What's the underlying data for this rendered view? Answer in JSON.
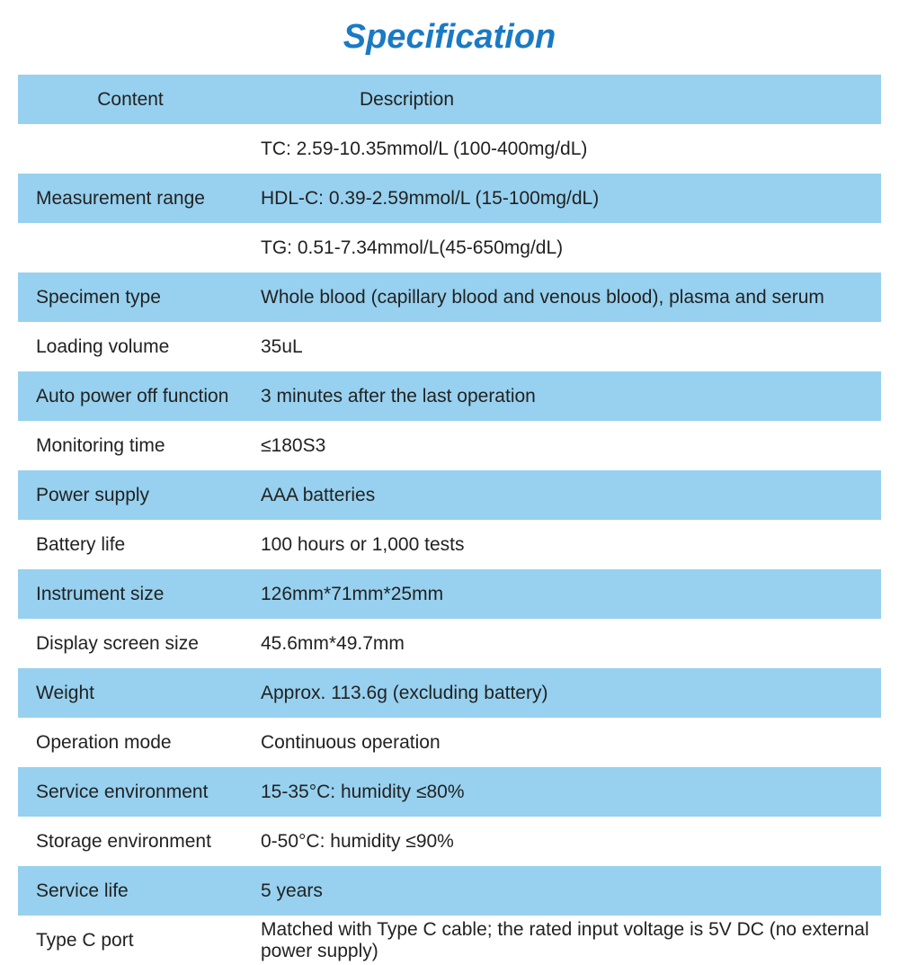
{
  "title": {
    "text": "Specification",
    "color": "#1a7ac4"
  },
  "table": {
    "header_bg": "#97d1ef",
    "row_bg_blue": "#97d1ef",
    "row_bg_white": "#ffffff",
    "text_color": "#222222"
  },
  "columns": [
    "Content",
    "Description"
  ],
  "rows": [
    {
      "content": "",
      "description": "TC: 2.59-10.35mmol/L (100-400mg/dL)",
      "bg": "white"
    },
    {
      "content": "Measurement range",
      "description": "HDL-C: 0.39-2.59mmol/L (15-100mg/dL)",
      "bg": "blue"
    },
    {
      "content": "",
      "description": "TG: 0.51-7.34mmol/L(45-650mg/dL)",
      "bg": "white"
    },
    {
      "content": "Specimen type",
      "description": "Whole blood (capillary blood and venous blood), plasma and serum",
      "bg": "blue"
    },
    {
      "content": "Loading volume",
      "description": "35uL",
      "bg": "white"
    },
    {
      "content": "Auto power off function",
      "description": " 3 minutes after the last operation",
      "bg": "blue"
    },
    {
      "content": "Monitoring time",
      "description": "≤180S3",
      "bg": "white"
    },
    {
      "content": "Power supply",
      "description": "AAA batteries",
      "bg": "blue"
    },
    {
      "content": "Battery life",
      "description": "100 hours or 1,000 tests",
      "bg": "white"
    },
    {
      "content": "Instrument size",
      "description": "126mm*71mm*25mm",
      "bg": "blue"
    },
    {
      "content": "Display screen size",
      "description": "45.6mm*49.7mm",
      "bg": "white"
    },
    {
      "content": "Weight",
      "description": "Approx. 113.6g (excluding battery)",
      "bg": "blue"
    },
    {
      "content": "Operation mode",
      "description": "Continuous operation",
      "bg": "white"
    },
    {
      "content": "Service environment",
      "description": "15-35°C: humidity ≤80%",
      "bg": "blue"
    },
    {
      "content": "Storage environment",
      "description": "0-50°C: humidity ≤90%",
      "bg": "white"
    },
    {
      "content": "Service life",
      "description": "5 years",
      "bg": "blue"
    },
    {
      "content": "Type C port",
      "description": "Matched with Type C cable;  the rated input voltage is 5V DC (no external power supply)",
      "bg": "white",
      "smaller": true
    }
  ]
}
